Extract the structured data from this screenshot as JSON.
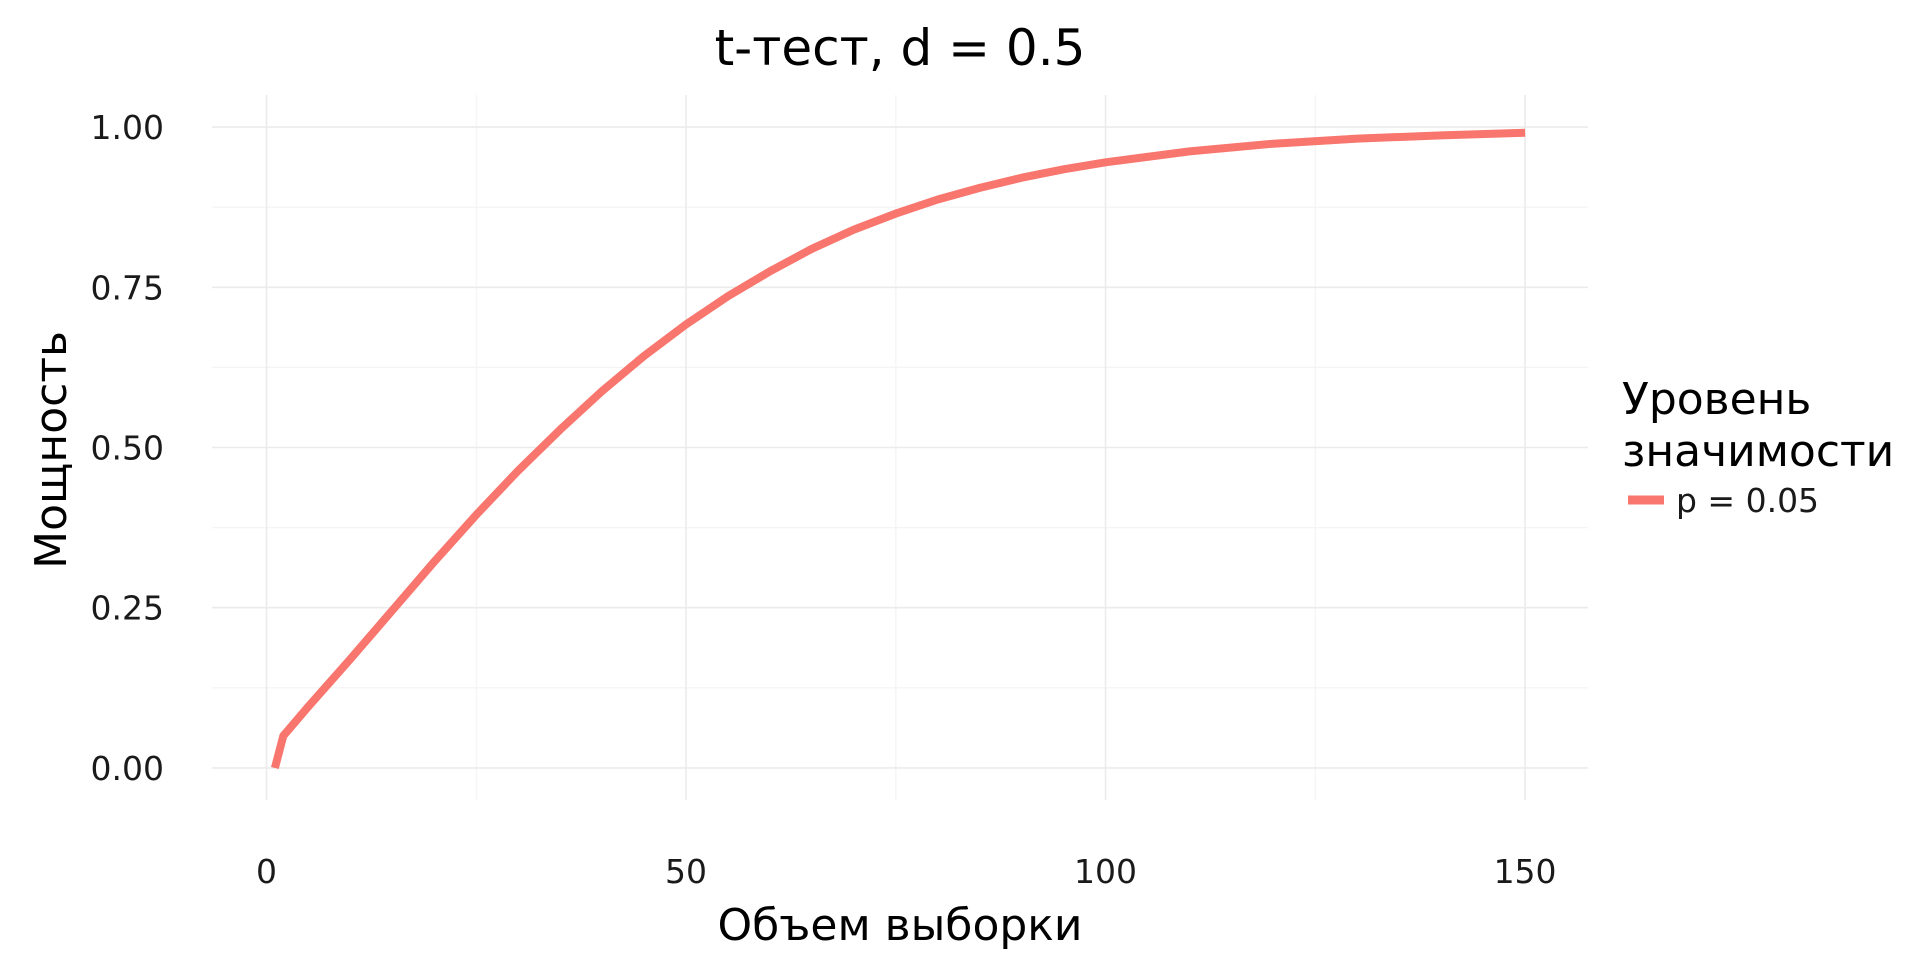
{
  "chart_data": {
    "type": "line",
    "title": "t-тест, d = 0.5",
    "xlabel": "Объем выборки",
    "ylabel": "Мощность",
    "xlim": [
      -6.5,
      157.5
    ],
    "ylim": [
      -0.05,
      1.05
    ],
    "x_ticks": [
      0,
      50,
      100,
      150
    ],
    "x_tick_labels": [
      "0",
      "50",
      "100",
      "150"
    ],
    "y_ticks": [
      0,
      0.25,
      0.5,
      0.75,
      1
    ],
    "y_tick_labels": [
      "0.00",
      "0.25",
      "0.50",
      "0.75",
      "1.00"
    ],
    "x_minor_ticks": [
      25,
      75,
      125
    ],
    "y_minor_ticks": [
      0.125,
      0.375,
      0.625,
      0.875
    ],
    "grid": true,
    "legend": {
      "title_lines": [
        "Уровень",
        "значимости"
      ],
      "placement": "right",
      "entries": [
        "p = 0.05"
      ]
    },
    "series": [
      {
        "name": "p = 0.05",
        "color": "#F8766D",
        "x": [
          1,
          2,
          5,
          10,
          15,
          20,
          25,
          30,
          35,
          40,
          45,
          50,
          55,
          60,
          65,
          70,
          75,
          80,
          85,
          90,
          95,
          100,
          110,
          120,
          130,
          140,
          150
        ],
        "y": [
          0,
          0.05,
          0.096,
          0.17,
          0.246,
          0.322,
          0.395,
          0.464,
          0.528,
          0.588,
          0.643,
          0.692,
          0.736,
          0.775,
          0.81,
          0.84,
          0.865,
          0.887,
          0.905,
          0.921,
          0.934,
          0.945,
          0.962,
          0.974,
          0.982,
          0.987,
          0.991
        ]
      }
    ]
  }
}
